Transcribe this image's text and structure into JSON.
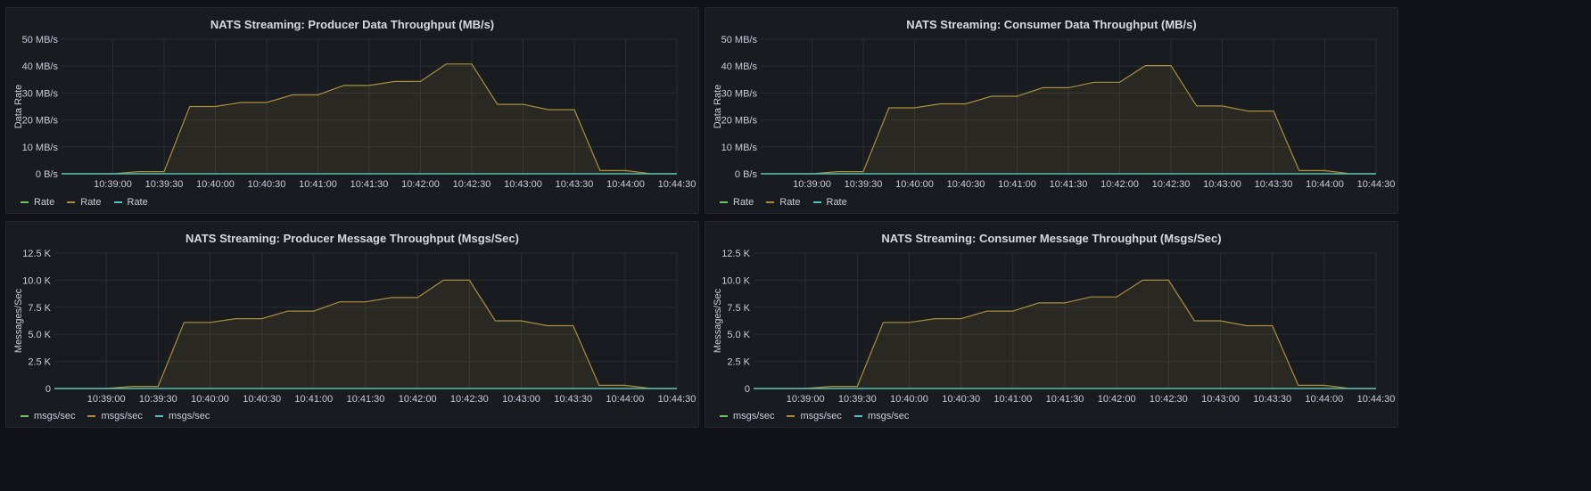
{
  "colors": {
    "series": [
      "#73bf69",
      "#a98e3c",
      "#56c3c3"
    ],
    "area_fill": "rgba(169,142,60,0.12)",
    "grid": "#2b2d33"
  },
  "time_labels": [
    "10:39:00",
    "10:39:30",
    "10:40:00",
    "10:40:30",
    "10:41:00",
    "10:41:30",
    "10:42:00",
    "10:42:30",
    "10:43:00",
    "10:43:30",
    "10:44:00",
    "10:44:30"
  ],
  "panels": [
    {
      "title": "NATS Streaming: Producer Data Throughput (MB/s)",
      "ylabel": "Data Rate",
      "legend": [
        "Rate",
        "Rate",
        "Rate"
      ]
    },
    {
      "title": "NATS Streaming: Consumer Data Throughput (MB/s)",
      "ylabel": "Data Rate",
      "legend": [
        "Rate",
        "Rate",
        "Rate"
      ]
    },
    {
      "title": "NATS Streaming: Producer Message Throughput (Msgs/Sec)",
      "ylabel": "Messages/Sec",
      "legend": [
        "msgs/sec",
        "msgs/sec",
        "msgs/sec"
      ]
    },
    {
      "title": "NATS Streaming: Consumer Message Throughput (Msgs/Sec)",
      "ylabel": "Messages/Sec",
      "legend": [
        "msgs/sec",
        "msgs/sec",
        "msgs/sec"
      ]
    }
  ],
  "chart_data": [
    {
      "type": "area",
      "title": "NATS Streaming: Producer Data Throughput (MB/s)",
      "ylabel": "Data Rate",
      "y_ticks": [
        "0 B/s",
        "10 MB/s",
        "20 MB/s",
        "30 MB/s",
        "40 MB/s",
        "50 MB/s"
      ],
      "ylim": [
        0,
        50
      ],
      "xlim": [
        "10:38:30",
        "10:44:30"
      ],
      "x_ticks": [
        "10:39:00",
        "10:39:30",
        "10:40:00",
        "10:40:30",
        "10:41:00",
        "10:41:30",
        "10:42:00",
        "10:42:30",
        "10:43:00",
        "10:43:30",
        "10:44:00",
        "10:44:30"
      ],
      "grid": true,
      "legend_position": "bottom-left",
      "x": [
        "10:38:30",
        "10:39:00",
        "10:39:15",
        "10:39:30",
        "10:39:45",
        "10:40:00",
        "10:40:15",
        "10:40:30",
        "10:40:45",
        "10:41:00",
        "10:41:15",
        "10:41:30",
        "10:41:45",
        "10:42:00",
        "10:42:15",
        "10:42:30",
        "10:42:45",
        "10:43:00",
        "10:43:15",
        "10:43:30",
        "10:43:45",
        "10:44:00",
        "10:44:15",
        "10:44:30"
      ],
      "series": [
        {
          "name": "Rate",
          "values": [
            0,
            0,
            0,
            0,
            0,
            0,
            0,
            0,
            0,
            0,
            0,
            0,
            0,
            0,
            0,
            0,
            0,
            0,
            0,
            0,
            0,
            0,
            0,
            0
          ]
        },
        {
          "name": "Rate",
          "values": [
            0,
            0,
            0.8,
            0.8,
            25,
            25,
            26.5,
            26.5,
            29.3,
            29.3,
            32.8,
            32.8,
            34.3,
            34.3,
            40.8,
            40.8,
            25.8,
            25.8,
            23.8,
            23.8,
            1.2,
            1.2,
            0,
            0
          ]
        },
        {
          "name": "Rate",
          "values": [
            0,
            0,
            0,
            0,
            0,
            0,
            0,
            0,
            0,
            0,
            0,
            0,
            0,
            0,
            0,
            0,
            0,
            0,
            0,
            0,
            0,
            0,
            0,
            0
          ]
        }
      ]
    },
    {
      "type": "area",
      "title": "NATS Streaming: Consumer Data Throughput (MB/s)",
      "ylabel": "Data Rate",
      "y_ticks": [
        "0 B/s",
        "10 MB/s",
        "20 MB/s",
        "30 MB/s",
        "40 MB/s",
        "50 MB/s"
      ],
      "ylim": [
        0,
        50
      ],
      "xlim": [
        "10:38:30",
        "10:44:30"
      ],
      "x_ticks": [
        "10:39:00",
        "10:39:30",
        "10:40:00",
        "10:40:30",
        "10:41:00",
        "10:41:30",
        "10:42:00",
        "10:42:30",
        "10:43:00",
        "10:43:30",
        "10:44:00",
        "10:44:30"
      ],
      "grid": true,
      "legend_position": "bottom-left",
      "x": [
        "10:38:30",
        "10:39:00",
        "10:39:15",
        "10:39:30",
        "10:39:45",
        "10:40:00",
        "10:40:15",
        "10:40:30",
        "10:40:45",
        "10:41:00",
        "10:41:15",
        "10:41:30",
        "10:41:45",
        "10:42:00",
        "10:42:15",
        "10:42:30",
        "10:42:45",
        "10:43:00",
        "10:43:15",
        "10:43:30",
        "10:43:45",
        "10:44:00",
        "10:44:15",
        "10:44:30"
      ],
      "series": [
        {
          "name": "Rate",
          "values": [
            0,
            0,
            0,
            0,
            0,
            0,
            0,
            0,
            0,
            0,
            0,
            0,
            0,
            0,
            0,
            0,
            0,
            0,
            0,
            0,
            0,
            0,
            0,
            0
          ]
        },
        {
          "name": "Rate",
          "values": [
            0,
            0,
            0.8,
            0.8,
            24.5,
            24.5,
            26,
            26,
            28.8,
            28.8,
            32,
            32,
            34,
            34,
            40.2,
            40.2,
            25.2,
            25.2,
            23.3,
            23.3,
            1.2,
            1.2,
            0,
            0
          ]
        },
        {
          "name": "Rate",
          "values": [
            0,
            0,
            0,
            0,
            0,
            0,
            0,
            0,
            0,
            0,
            0,
            0,
            0,
            0,
            0,
            0,
            0,
            0,
            0,
            0,
            0,
            0,
            0,
            0
          ]
        }
      ]
    },
    {
      "type": "area",
      "title": "NATS Streaming: Producer Message Throughput (Msgs/Sec)",
      "ylabel": "Messages/Sec",
      "y_ticks": [
        "0",
        "2.5 K",
        "5.0 K",
        "7.5 K",
        "10.0 K",
        "12.5 K"
      ],
      "ylim": [
        0,
        12500
      ],
      "xlim": [
        "10:38:30",
        "10:44:30"
      ],
      "x_ticks": [
        "10:39:00",
        "10:39:30",
        "10:40:00",
        "10:40:30",
        "10:41:00",
        "10:41:30",
        "10:42:00",
        "10:42:30",
        "10:43:00",
        "10:43:30",
        "10:44:00",
        "10:44:30"
      ],
      "grid": true,
      "legend_position": "bottom-left",
      "x": [
        "10:38:30",
        "10:39:00",
        "10:39:15",
        "10:39:30",
        "10:39:45",
        "10:40:00",
        "10:40:15",
        "10:40:30",
        "10:40:45",
        "10:41:00",
        "10:41:15",
        "10:41:30",
        "10:41:45",
        "10:42:00",
        "10:42:15",
        "10:42:30",
        "10:42:45",
        "10:43:00",
        "10:43:15",
        "10:43:30",
        "10:43:45",
        "10:44:00",
        "10:44:15",
        "10:44:30"
      ],
      "series": [
        {
          "name": "msgs/sec",
          "values": [
            0,
            0,
            0,
            0,
            0,
            0,
            0,
            0,
            0,
            0,
            0,
            0,
            0,
            0,
            0,
            0,
            0,
            0,
            0,
            0,
            0,
            0,
            0,
            0
          ]
        },
        {
          "name": "msgs/sec",
          "values": [
            0,
            0,
            200,
            200,
            6100,
            6100,
            6450,
            6450,
            7150,
            7150,
            8000,
            8000,
            8400,
            8400,
            10000,
            10000,
            6250,
            6250,
            5800,
            5800,
            300,
            300,
            0,
            0
          ]
        },
        {
          "name": "msgs/sec",
          "values": [
            0,
            0,
            0,
            0,
            0,
            0,
            0,
            0,
            0,
            0,
            0,
            0,
            0,
            0,
            0,
            0,
            0,
            0,
            0,
            0,
            0,
            0,
            0,
            0
          ]
        }
      ]
    },
    {
      "type": "area",
      "title": "NATS Streaming: Consumer Message Throughput (Msgs/Sec)",
      "ylabel": "Messages/Sec",
      "y_ticks": [
        "0",
        "2.5 K",
        "5.0 K",
        "7.5 K",
        "10.0 K",
        "12.5 K"
      ],
      "ylim": [
        0,
        12500
      ],
      "xlim": [
        "10:38:30",
        "10:44:30"
      ],
      "x_ticks": [
        "10:39:00",
        "10:39:30",
        "10:40:00",
        "10:40:30",
        "10:41:00",
        "10:41:30",
        "10:42:00",
        "10:42:30",
        "10:43:00",
        "10:43:30",
        "10:44:00",
        "10:44:30"
      ],
      "grid": true,
      "legend_position": "bottom-left",
      "x": [
        "10:38:30",
        "10:39:00",
        "10:39:15",
        "10:39:30",
        "10:39:45",
        "10:40:00",
        "10:40:15",
        "10:40:30",
        "10:40:45",
        "10:41:00",
        "10:41:15",
        "10:41:30",
        "10:41:45",
        "10:42:00",
        "10:42:15",
        "10:42:30",
        "10:42:45",
        "10:43:00",
        "10:43:15",
        "10:43:30",
        "10:43:45",
        "10:44:00",
        "10:44:15",
        "10:44:30"
      ],
      "series": [
        {
          "name": "msgs/sec",
          "values": [
            0,
            0,
            0,
            0,
            0,
            0,
            0,
            0,
            0,
            0,
            0,
            0,
            0,
            0,
            0,
            0,
            0,
            0,
            0,
            0,
            0,
            0,
            0,
            0
          ]
        },
        {
          "name": "msgs/sec",
          "values": [
            0,
            0,
            200,
            200,
            6100,
            6100,
            6450,
            6450,
            7150,
            7150,
            7900,
            7900,
            8450,
            8450,
            10000,
            10000,
            6250,
            6250,
            5800,
            5800,
            300,
            300,
            0,
            0
          ]
        },
        {
          "name": "msgs/sec",
          "values": [
            0,
            0,
            0,
            0,
            0,
            0,
            0,
            0,
            0,
            0,
            0,
            0,
            0,
            0,
            0,
            0,
            0,
            0,
            0,
            0,
            0,
            0,
            0,
            0
          ]
        }
      ]
    }
  ]
}
